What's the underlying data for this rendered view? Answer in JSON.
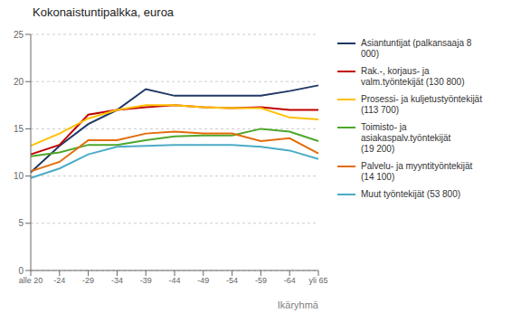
{
  "chart_data": {
    "type": "line",
    "title": "Kokonaistuntipalkka, euroa",
    "xlabel": "Ikäryhmä",
    "categories": [
      "alle 20",
      "-24",
      "-29",
      "-34",
      "-39",
      "-44",
      "-49",
      "-54",
      "-59",
      "-64",
      "yli 65"
    ],
    "ylim": [
      0,
      25
    ],
    "yticks": [
      0,
      5,
      10,
      15,
      20,
      25
    ],
    "grid": true,
    "legend": "right",
    "series": [
      {
        "name": "Asiantuntijat (palkansaaja 8\n000)",
        "color": "#1f3864",
        "values": [
          10.4,
          13.2,
          15.5,
          17.0,
          19.2,
          18.5,
          18.5,
          18.5,
          18.5,
          19.0,
          19.6
        ]
      },
      {
        "name": "Rak.-, korjaus- ja\nvalm.työntekijät (130 800)",
        "color": "#c00000",
        "values": [
          12.3,
          13.3,
          16.5,
          17.0,
          17.3,
          17.5,
          17.3,
          17.2,
          17.3,
          17.0,
          17.0
        ]
      },
      {
        "name": "Prosessi- ja kuljetustyöntekijät\n(113 700)",
        "color": "#ffc000",
        "values": [
          13.2,
          14.5,
          16.1,
          17.0,
          17.5,
          17.5,
          17.3,
          17.2,
          17.2,
          16.2,
          16.0
        ]
      },
      {
        "name": "Toimisto- ja\nasiakaspalv.työntekijät\n(19 200)",
        "color": "#4ea72a",
        "values": [
          12.1,
          12.5,
          13.3,
          13.3,
          13.8,
          14.2,
          14.3,
          14.3,
          15.0,
          14.7,
          13.7
        ]
      },
      {
        "name": "Palvelu- ja myyntityöntekijät\n(14 100)",
        "color": "#e36c09",
        "values": [
          10.5,
          11.5,
          13.8,
          13.8,
          14.5,
          14.7,
          14.5,
          14.5,
          13.7,
          14.0,
          12.4
        ]
      },
      {
        "name": "Muut työntekijät (53 800)",
        "color": "#4bacc6",
        "values": [
          9.8,
          10.8,
          12.3,
          13.1,
          13.2,
          13.3,
          13.3,
          13.3,
          13.1,
          12.7,
          11.8
        ]
      }
    ]
  }
}
